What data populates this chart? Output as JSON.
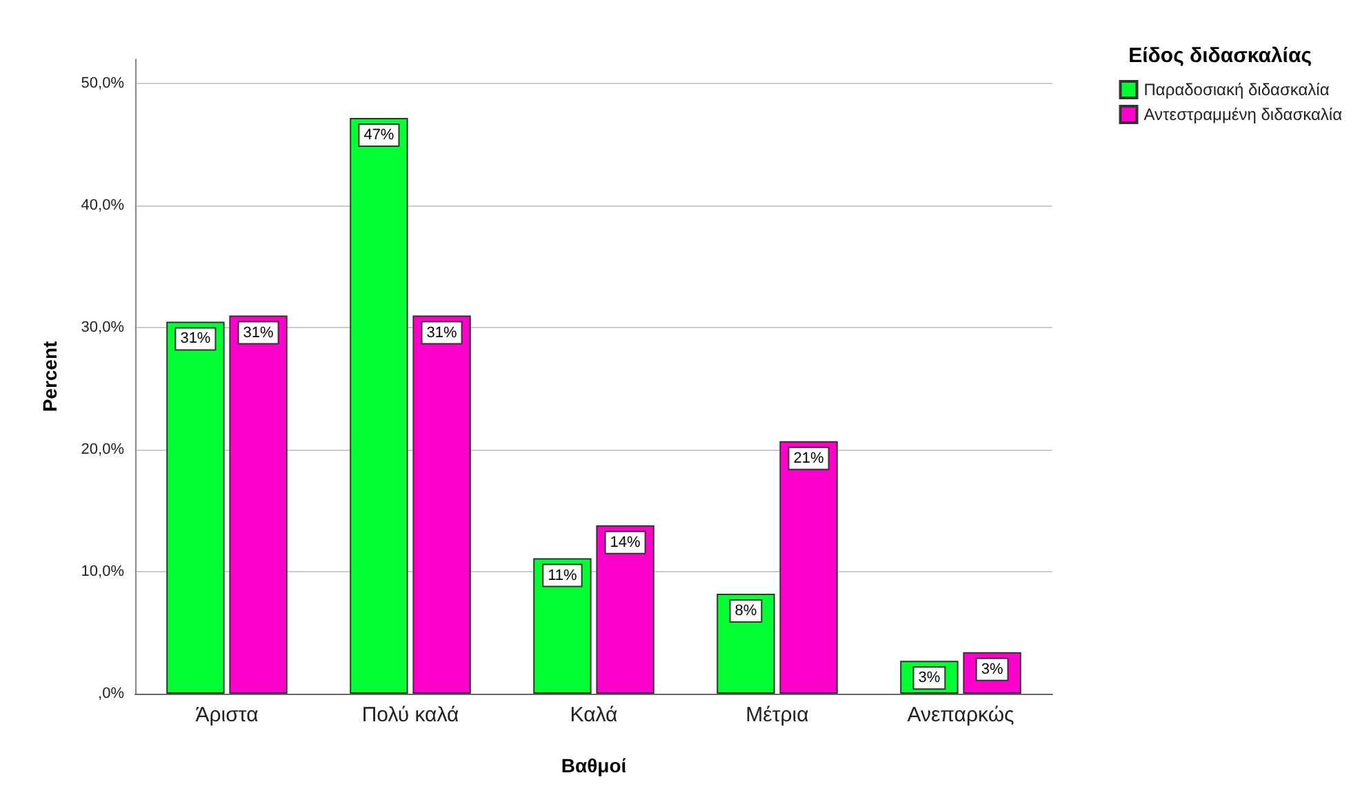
{
  "chart_data": {
    "type": "bar",
    "xlabel": "Βαθμοί",
    "ylabel": "Percent",
    "legend_title": "Είδος διδασκαλίας",
    "categories": [
      "Άριστα",
      "Πολύ καλά",
      "Καλά",
      "Μέτρια",
      "Ανεπαρκώς"
    ],
    "series": [
      {
        "name": "Παραδοσιακή διδασκαλία",
        "color": "#00ff33",
        "values": [
          30.5,
          47.2,
          11.1,
          8.2,
          2.7
        ],
        "value_labels": [
          "31%",
          "47%",
          "11%",
          "8%",
          "3%"
        ]
      },
      {
        "name": "Αντεστραμμένη διδασκαλία",
        "color": "#ff00cc",
        "values": [
          31.0,
          31.0,
          13.8,
          20.7,
          3.4
        ],
        "value_labels": [
          "31%",
          "31%",
          "14%",
          "21%",
          "3%"
        ]
      }
    ],
    "ylim": [
      0,
      52
    ],
    "yticks": [
      {
        "value": 0,
        "label": ",0%"
      },
      {
        "value": 10,
        "label": "10,0%"
      },
      {
        "value": 20,
        "label": "20,0%"
      },
      {
        "value": 30,
        "label": "30,0%"
      },
      {
        "value": 40,
        "label": "40,0%"
      },
      {
        "value": 50,
        "label": "50,0%"
      }
    ],
    "grid": "y",
    "legend": "top right"
  }
}
